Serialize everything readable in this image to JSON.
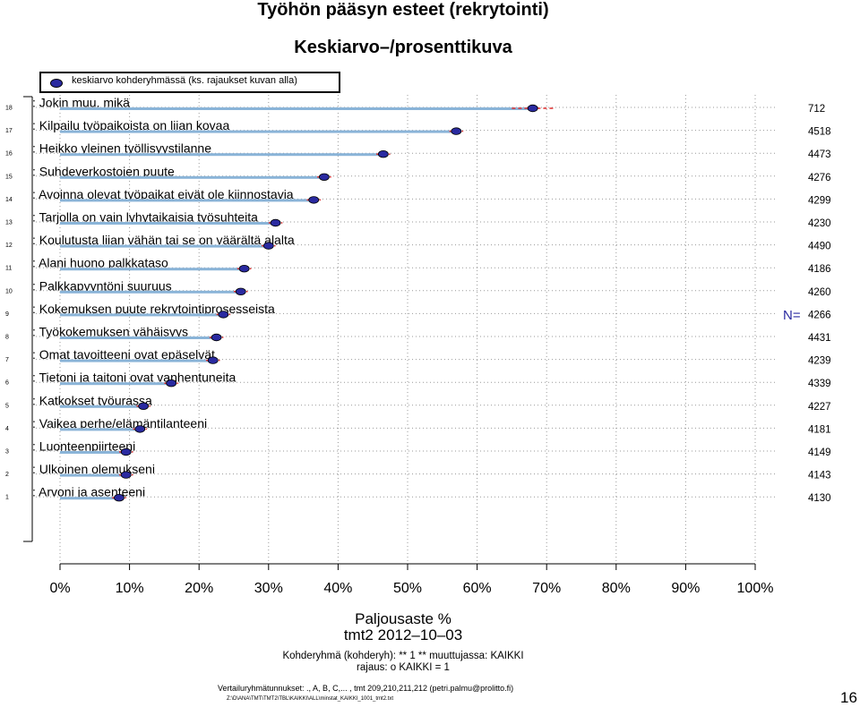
{
  "title": "Työhön pääsyn esteet (rekrytointi)",
  "subtitle": "Keskiarvo–/prosenttikuva",
  "legend": {
    "label": "keskiarvo kohderyhmässä (ks. rajaukset kuvan alla)"
  },
  "colors": {
    "bar": "#8ab4d8",
    "dot": "#2a2aa0",
    "ci": "#e03030",
    "grid": "#999999",
    "n_prefix": "#2a2aa0"
  },
  "n_prefix": "N=",
  "xlabel": "Paljousaste %",
  "xlabel2": "tmt2 2012–10–03",
  "group_line": "Kohderyhmä (kohderyh): ** 1 ** muuttujassa:  KAIKKI",
  "rajaus_line": "rajaus:  o KAIKKI = 1",
  "vertailu_line": "Vertailuryhmätunnukset: ., A, B, C,...    , tmt 209,210,211,212 (petri.palmu@prolitto.fi)",
  "file_line": "Z:\\D\\ANA\\TMT\\TMT2\\TBL\\KAIKKI\\ALL\\minstat_KAIKKI_1001_tmt2.txt",
  "page_number": "16",
  "chart_data": {
    "type": "dot",
    "xlim": [
      0,
      100
    ],
    "xticks": [
      "0%",
      "10%",
      "20%",
      "30%",
      "40%",
      "50%",
      "60%",
      "70%",
      "80%",
      "90%",
      "100%"
    ],
    "rows": [
      {
        "num": "18",
        "label": ": Jokin muu. mikä",
        "value": 68,
        "ci": [
          65,
          71
        ],
        "n": "712"
      },
      {
        "num": "17",
        "label": ": Kilpailu työpaikoista on liian kovaa",
        "value": 57,
        "ci": [
          56,
          58
        ],
        "n": "4518"
      },
      {
        "num": "16",
        "label": ": Heikko yleinen työllisyystilanne",
        "value": 46.5,
        "ci": [
          45.5,
          47.5
        ],
        "n": "4473"
      },
      {
        "num": "15",
        "label": ": Suhdeverkostojen puute",
        "value": 38,
        "ci": [
          37,
          39
        ],
        "n": "4276"
      },
      {
        "num": "14",
        "label": ": Avoinna olevat työpaikat eivät ole kiinnostavia",
        "value": 36.5,
        "ci": [
          35.5,
          37.5
        ],
        "n": "4299"
      },
      {
        "num": "13",
        "label": ": Tarjolla on vain lyhytaikaisia työsuhteita",
        "value": 31,
        "ci": [
          30,
          32
        ],
        "n": "4230"
      },
      {
        "num": "12",
        "label": ": Koulutusta liian vähän tai se on väärältä alalta",
        "value": 30,
        "ci": [
          29,
          31
        ],
        "n": "4490"
      },
      {
        "num": "11",
        "label": ": Alani huono palkkataso",
        "value": 26.5,
        "ci": [
          25.5,
          27.5
        ],
        "n": "4186"
      },
      {
        "num": "10",
        "label": ": Palkkapyyntöni suuruus",
        "value": 26,
        "ci": [
          25,
          27
        ],
        "n": "4260"
      },
      {
        "num": "9",
        "label": ": Kokemuksen puute rekrytointiprosesseista",
        "value": 23.5,
        "ci": [
          22.5,
          24.5
        ],
        "n": "4266"
      },
      {
        "num": "8",
        "label": ": Työkokemuksen vähäisyys",
        "value": 22.5,
        "ci": [
          21.5,
          23.5
        ],
        "n": "4431"
      },
      {
        "num": "7",
        "label": ": Omat tavoitteeni ovat epäselvät",
        "value": 22,
        "ci": [
          21,
          23
        ],
        "n": "4239"
      },
      {
        "num": "6",
        "label": ": Tietoni ja taitoni ovat vanhentuneita",
        "value": 16,
        "ci": [
          15,
          17
        ],
        "n": "4339"
      },
      {
        "num": "5",
        "label": ": Katkokset työurassa",
        "value": 12,
        "ci": [
          11,
          13
        ],
        "n": "4227"
      },
      {
        "num": "4",
        "label": ": Vaikea perhe/elämäntilanteeni",
        "value": 11.5,
        "ci": [
          10.5,
          12.5
        ],
        "n": "4181"
      },
      {
        "num": "3",
        "label": ": Luonteenpiirteeni",
        "value": 9.5,
        "ci": [
          8.5,
          10.5
        ],
        "n": "4149"
      },
      {
        "num": "2",
        "label": ": Ulkoinen olemukseni",
        "value": 9.5,
        "ci": [
          8.5,
          10.5
        ],
        "n": "4143"
      },
      {
        "num": "1",
        "label": ": Arvoni ja asenteeni",
        "value": 8.5,
        "ci": [
          7.5,
          9.5
        ],
        "n": "4130"
      }
    ]
  }
}
